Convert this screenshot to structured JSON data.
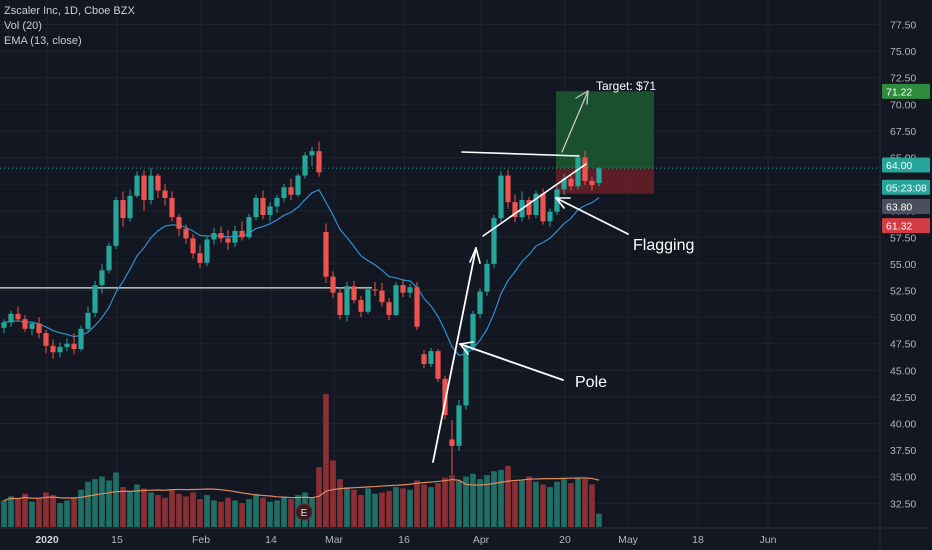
{
  "header": {
    "title": "Zscaler Inc, 1D, Cboe BZX",
    "indicators": [
      "Vol (20)",
      "EMA (13, close)"
    ]
  },
  "colors": {
    "background": "#131722",
    "up": "#26a69a",
    "down": "#ef5350",
    "vol_up": "#1f6f67",
    "vol_down": "#8c2f35",
    "ema": "#2f8fd0",
    "vol_ma": "#e08a5c",
    "target_zone": "#1d5a30",
    "stop_zone": "#6a1f27"
  },
  "chart_data": {
    "type": "candlestick",
    "title": "Zscaler Inc, 1D, Cboe BZX",
    "y_axis": {
      "range": [
        31,
        79
      ],
      "ticks": [
        "77.50",
        "75.00",
        "72.50",
        "70.00",
        "67.50",
        "65.00",
        "62.50",
        "60.00",
        "57.50",
        "55.00",
        "52.50",
        "50.00",
        "47.50",
        "45.00",
        "42.50",
        "40.00",
        "37.50",
        "35.00",
        "32.50"
      ]
    },
    "x_axis": {
      "ticks": [
        {
          "label": "2020",
          "index": 5,
          "bold": true
        },
        {
          "label": "15",
          "index": 15
        },
        {
          "label": "Feb",
          "index": 27
        },
        {
          "label": "14",
          "index": 37
        },
        {
          "label": "Mar",
          "index": 46
        },
        {
          "label": "16",
          "index": 56
        },
        {
          "label": "Apr",
          "index": 67
        },
        {
          "label": "20",
          "index": 79
        },
        {
          "label": "May",
          "index": 88
        },
        {
          "label": "18",
          "index": 98
        },
        {
          "label": "Jun",
          "index": 108
        }
      ]
    },
    "candles": [
      [
        49.0,
        49.8,
        48.5,
        49.5
      ],
      [
        49.5,
        50.6,
        49.1,
        50.3
      ],
      [
        50.3,
        51.0,
        49.6,
        49.8
      ],
      [
        49.8,
        50.2,
        48.6,
        48.9
      ],
      [
        48.9,
        49.6,
        48.3,
        49.4
      ],
      [
        49.4,
        50.0,
        48.0,
        48.5
      ],
      [
        48.5,
        48.8,
        46.6,
        47.3
      ],
      [
        47.3,
        47.9,
        46.1,
        46.7
      ],
      [
        46.7,
        47.6,
        46.2,
        47.2
      ],
      [
        47.2,
        48.0,
        46.8,
        47.5
      ],
      [
        47.5,
        48.5,
        46.5,
        47.0
      ],
      [
        47.0,
        49.2,
        46.8,
        48.9
      ],
      [
        48.9,
        51.0,
        48.7,
        50.4
      ],
      [
        50.4,
        53.4,
        50.0,
        53.0
      ],
      [
        53.0,
        55.0,
        52.2,
        54.4
      ],
      [
        54.4,
        57.0,
        54.1,
        56.7
      ],
      [
        56.7,
        61.3,
        56.4,
        61.0
      ],
      [
        61.0,
        61.8,
        58.5,
        59.3
      ],
      [
        59.3,
        62.0,
        59.0,
        61.4
      ],
      [
        61.4,
        63.7,
        61.2,
        63.3
      ],
      [
        63.3,
        63.8,
        60.0,
        61.0
      ],
      [
        61.0,
        64.0,
        60.6,
        63.3
      ],
      [
        63.3,
        63.5,
        61.2,
        61.9
      ],
      [
        61.9,
        62.5,
        60.5,
        61.2
      ],
      [
        61.2,
        61.8,
        59.0,
        59.4
      ],
      [
        59.4,
        59.7,
        57.6,
        58.3
      ],
      [
        58.3,
        58.7,
        56.9,
        57.4
      ],
      [
        57.4,
        57.8,
        55.5,
        56.0
      ],
      [
        56.0,
        56.8,
        54.6,
        55.1
      ],
      [
        55.1,
        57.6,
        54.8,
        57.3
      ],
      [
        57.3,
        58.4,
        56.8,
        57.9
      ],
      [
        57.9,
        58.5,
        57.0,
        57.4
      ],
      [
        57.4,
        58.2,
        56.3,
        57.0
      ],
      [
        57.0,
        58.6,
        56.6,
        58.1
      ],
      [
        58.1,
        59.0,
        57.2,
        57.5
      ],
      [
        57.5,
        59.7,
        57.3,
        59.4
      ],
      [
        59.4,
        61.5,
        59.1,
        61.2
      ],
      [
        61.2,
        61.9,
        59.2,
        59.6
      ],
      [
        59.6,
        60.8,
        59.0,
        60.4
      ],
      [
        60.4,
        61.5,
        59.8,
        61.2
      ],
      [
        61.2,
        62.5,
        60.8,
        62.2
      ],
      [
        62.2,
        63.0,
        61.0,
        61.5
      ],
      [
        61.5,
        63.5,
        61.3,
        63.3
      ],
      [
        63.3,
        65.5,
        63.0,
        65.2
      ],
      [
        65.2,
        66.0,
        64.2,
        65.6
      ],
      [
        65.6,
        66.5,
        63.2,
        63.6
      ],
      [
        58.0,
        58.8,
        53.2,
        53.8
      ],
      [
        53.8,
        54.3,
        51.8,
        52.3
      ],
      [
        52.3,
        52.8,
        49.8,
        50.2
      ],
      [
        50.2,
        53.3,
        49.6,
        52.9
      ],
      [
        52.9,
        53.4,
        51.3,
        51.6
      ],
      [
        51.6,
        52.0,
        50.0,
        50.5
      ],
      [
        50.5,
        52.9,
        50.3,
        52.6
      ],
      [
        52.6,
        53.3,
        52.0,
        52.5
      ],
      [
        52.5,
        53.2,
        51.0,
        51.4
      ],
      [
        51.4,
        51.8,
        49.7,
        50.2
      ],
      [
        50.2,
        53.3,
        50.1,
        53.0
      ],
      [
        53.0,
        53.5,
        51.9,
        52.3
      ],
      [
        52.3,
        53.1,
        51.8,
        52.8
      ],
      [
        52.8,
        53.3,
        48.8,
        49.1
      ],
      [
        46.5,
        46.9,
        45.2,
        45.6
      ],
      [
        45.6,
        47.1,
        45.3,
        46.8
      ],
      [
        46.8,
        47.0,
        43.9,
        44.2
      ],
      [
        44.2,
        44.5,
        40.4,
        40.8
      ],
      [
        38.5,
        40.3,
        35.2,
        37.9
      ],
      [
        37.9,
        42.2,
        37.4,
        41.7
      ],
      [
        41.7,
        47.6,
        41.3,
        47.2
      ],
      [
        47.2,
        50.6,
        46.8,
        50.3
      ],
      [
        50.3,
        52.7,
        49.9,
        52.4
      ],
      [
        52.4,
        55.4,
        52.0,
        55.0
      ],
      [
        55.0,
        59.6,
        54.6,
        59.3
      ],
      [
        59.3,
        63.7,
        58.9,
        63.3
      ],
      [
        63.3,
        63.8,
        60.2,
        60.8
      ],
      [
        60.8,
        61.5,
        58.9,
        59.4
      ],
      [
        59.4,
        61.8,
        59.0,
        61.0
      ],
      [
        61.0,
        61.3,
        59.2,
        59.6
      ],
      [
        59.6,
        61.9,
        59.3,
        61.6
      ],
      [
        61.6,
        62.1,
        58.7,
        59.0
      ],
      [
        59.0,
        60.2,
        58.5,
        59.9
      ],
      [
        59.9,
        62.3,
        59.6,
        62.0
      ],
      [
        62.0,
        63.5,
        61.5,
        63.0
      ],
      [
        63.0,
        63.3,
        61.9,
        62.3
      ],
      [
        62.3,
        65.3,
        62.0,
        65.0
      ],
      [
        65.0,
        65.6,
        62.4,
        62.8
      ],
      [
        62.8,
        63.2,
        61.9,
        62.4
      ],
      [
        62.6,
        64.1,
        62.3,
        64.0
      ]
    ],
    "volume": [
      [
        2.0,
        1
      ],
      [
        2.3,
        1
      ],
      [
        2.1,
        0
      ],
      [
        2.5,
        0
      ],
      [
        1.9,
        1
      ],
      [
        2.2,
        0
      ],
      [
        2.6,
        0
      ],
      [
        2.4,
        0
      ],
      [
        1.8,
        1
      ],
      [
        2.0,
        1
      ],
      [
        2.2,
        0
      ],
      [
        2.8,
        1
      ],
      [
        3.4,
        1
      ],
      [
        3.6,
        1
      ],
      [
        3.8,
        1
      ],
      [
        3.5,
        1
      ],
      [
        4.1,
        1
      ],
      [
        3.0,
        0
      ],
      [
        2.7,
        1
      ],
      [
        3.2,
        1
      ],
      [
        2.9,
        0
      ],
      [
        2.6,
        1
      ],
      [
        2.4,
        0
      ],
      [
        2.2,
        0
      ],
      [
        2.8,
        0
      ],
      [
        2.5,
        0
      ],
      [
        2.3,
        0
      ],
      [
        2.6,
        0
      ],
      [
        2.1,
        0
      ],
      [
        2.4,
        1
      ],
      [
        2.0,
        1
      ],
      [
        1.9,
        0
      ],
      [
        2.2,
        0
      ],
      [
        2.0,
        1
      ],
      [
        1.8,
        0
      ],
      [
        2.1,
        1
      ],
      [
        2.5,
        1
      ],
      [
        2.2,
        0
      ],
      [
        1.9,
        1
      ],
      [
        2.0,
        1
      ],
      [
        2.3,
        1
      ],
      [
        2.1,
        0
      ],
      [
        2.4,
        1
      ],
      [
        2.6,
        1
      ],
      [
        2.2,
        1
      ],
      [
        4.5,
        0
      ],
      [
        10.0,
        0
      ],
      [
        5.0,
        0
      ],
      [
        3.6,
        0
      ],
      [
        3.0,
        1
      ],
      [
        2.8,
        0
      ],
      [
        2.4,
        0
      ],
      [
        2.9,
        1
      ],
      [
        2.5,
        1
      ],
      [
        2.6,
        0
      ],
      [
        2.7,
        0
      ],
      [
        3.0,
        1
      ],
      [
        2.9,
        0
      ],
      [
        2.8,
        1
      ],
      [
        3.5,
        0
      ],
      [
        3.2,
        0
      ],
      [
        3.0,
        1
      ],
      [
        3.3,
        0
      ],
      [
        3.7,
        0
      ],
      [
        3.9,
        0
      ],
      [
        3.5,
        1
      ],
      [
        3.8,
        1
      ],
      [
        4.0,
        1
      ],
      [
        3.6,
        1
      ],
      [
        3.9,
        1
      ],
      [
        4.2,
        1
      ],
      [
        4.3,
        1
      ],
      [
        4.6,
        0
      ],
      [
        3.4,
        0
      ],
      [
        3.5,
        1
      ],
      [
        3.8,
        0
      ],
      [
        3.4,
        1
      ],
      [
        3.2,
        0
      ],
      [
        3.0,
        1
      ],
      [
        3.4,
        1
      ],
      [
        3.6,
        1
      ],
      [
        3.3,
        0
      ],
      [
        3.7,
        1
      ],
      [
        3.6,
        0
      ],
      [
        3.2,
        0
      ],
      [
        1.0,
        1
      ]
    ],
    "price_tags": [
      {
        "label": "71.22",
        "value": 71.22,
        "color": "#2e8b3e"
      },
      {
        "label": "64.00",
        "value": 64.3,
        "color": "#26a69a"
      },
      {
        "label": "05:23:08",
        "value": 62.2,
        "color": "#26a69a"
      },
      {
        "label": "63.80",
        "value": 60.4,
        "color": "#4a4f5c"
      },
      {
        "label": "61.32",
        "value": 58.6,
        "color": "#d33c44"
      }
    ],
    "current_price": 64.0,
    "annotations": {
      "target_label": "Target: $71",
      "pole_label": "Pole",
      "flag_label": "Flagging"
    },
    "vol_marker": "E"
  }
}
